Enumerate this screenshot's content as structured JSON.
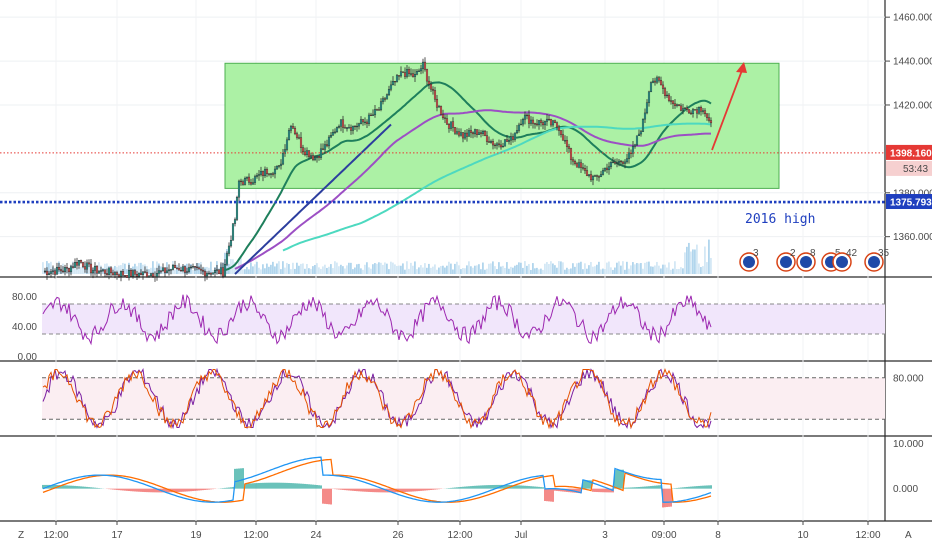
{
  "chart_data": [
    {
      "type": "candlestick",
      "panel": "price",
      "y_ticks": [
        "1460.000",
        "1440.000",
        "1420.000",
        "1380.000",
        "1360.000"
      ],
      "y_tick_values": [
        1460,
        1440,
        1420,
        1380,
        1360
      ],
      "ylim": [
        1343,
        1466
      ],
      "current_price": {
        "label": "1398.160",
        "value": 1398.16,
        "color": "#e53935"
      },
      "countdown": "53:43",
      "level_2016_high": {
        "label": "1375.793",
        "value": 1375.793,
        "color": "#1f3fbf"
      },
      "annotation": "2016 high",
      "range_box": {
        "top_value": 1439,
        "bottom_value": 1382,
        "fill": "#a8f0a0",
        "stroke": "#4caf50"
      },
      "moving_averages": [
        {
          "color": "#1e7f5c"
        },
        {
          "color": "#9c4fc4"
        },
        {
          "color": "#4dd9c0"
        },
        {
          "color": "#2c3e9e"
        }
      ],
      "event_flags": [
        "3",
        "2",
        "8",
        "5",
        "42",
        "35"
      ],
      "up_color": "#26a69a",
      "down_color": "#ef5350"
    },
    {
      "type": "line",
      "panel": "rsi",
      "y_ticks": [
        "80.00",
        "40.00",
        "0.00"
      ],
      "y_tick_values": [
        80,
        40,
        0
      ],
      "ylim": [
        -2,
        102
      ],
      "band": [
        30,
        70
      ],
      "line_color": "#9c27b0"
    },
    {
      "type": "line",
      "panel": "stochastic",
      "y_ticks": [
        "80.000"
      ],
      "y_tick_values": [
        80
      ],
      "ylim": [
        0,
        100
      ],
      "band": [
        20,
        80
      ],
      "series_colors": [
        "#e65100",
        "#7b1fa2"
      ]
    },
    {
      "type": "bar",
      "panel": "macd",
      "y_ticks": [
        "10.000",
        "0.000"
      ],
      "y_tick_values": [
        10,
        0
      ],
      "ylim": [
        -6.5,
        11
      ],
      "macd_color": "#2196f3",
      "signal_color": "#ff6d00"
    }
  ],
  "x_axis": {
    "ticks": [
      "12:00",
      "17",
      "19",
      "12:00",
      "24",
      "26",
      "12:00",
      "Jul",
      "3",
      "09:00",
      "8",
      "10",
      "12:00"
    ]
  },
  "footer": {
    "left_label": "Z",
    "right_label": "A"
  }
}
